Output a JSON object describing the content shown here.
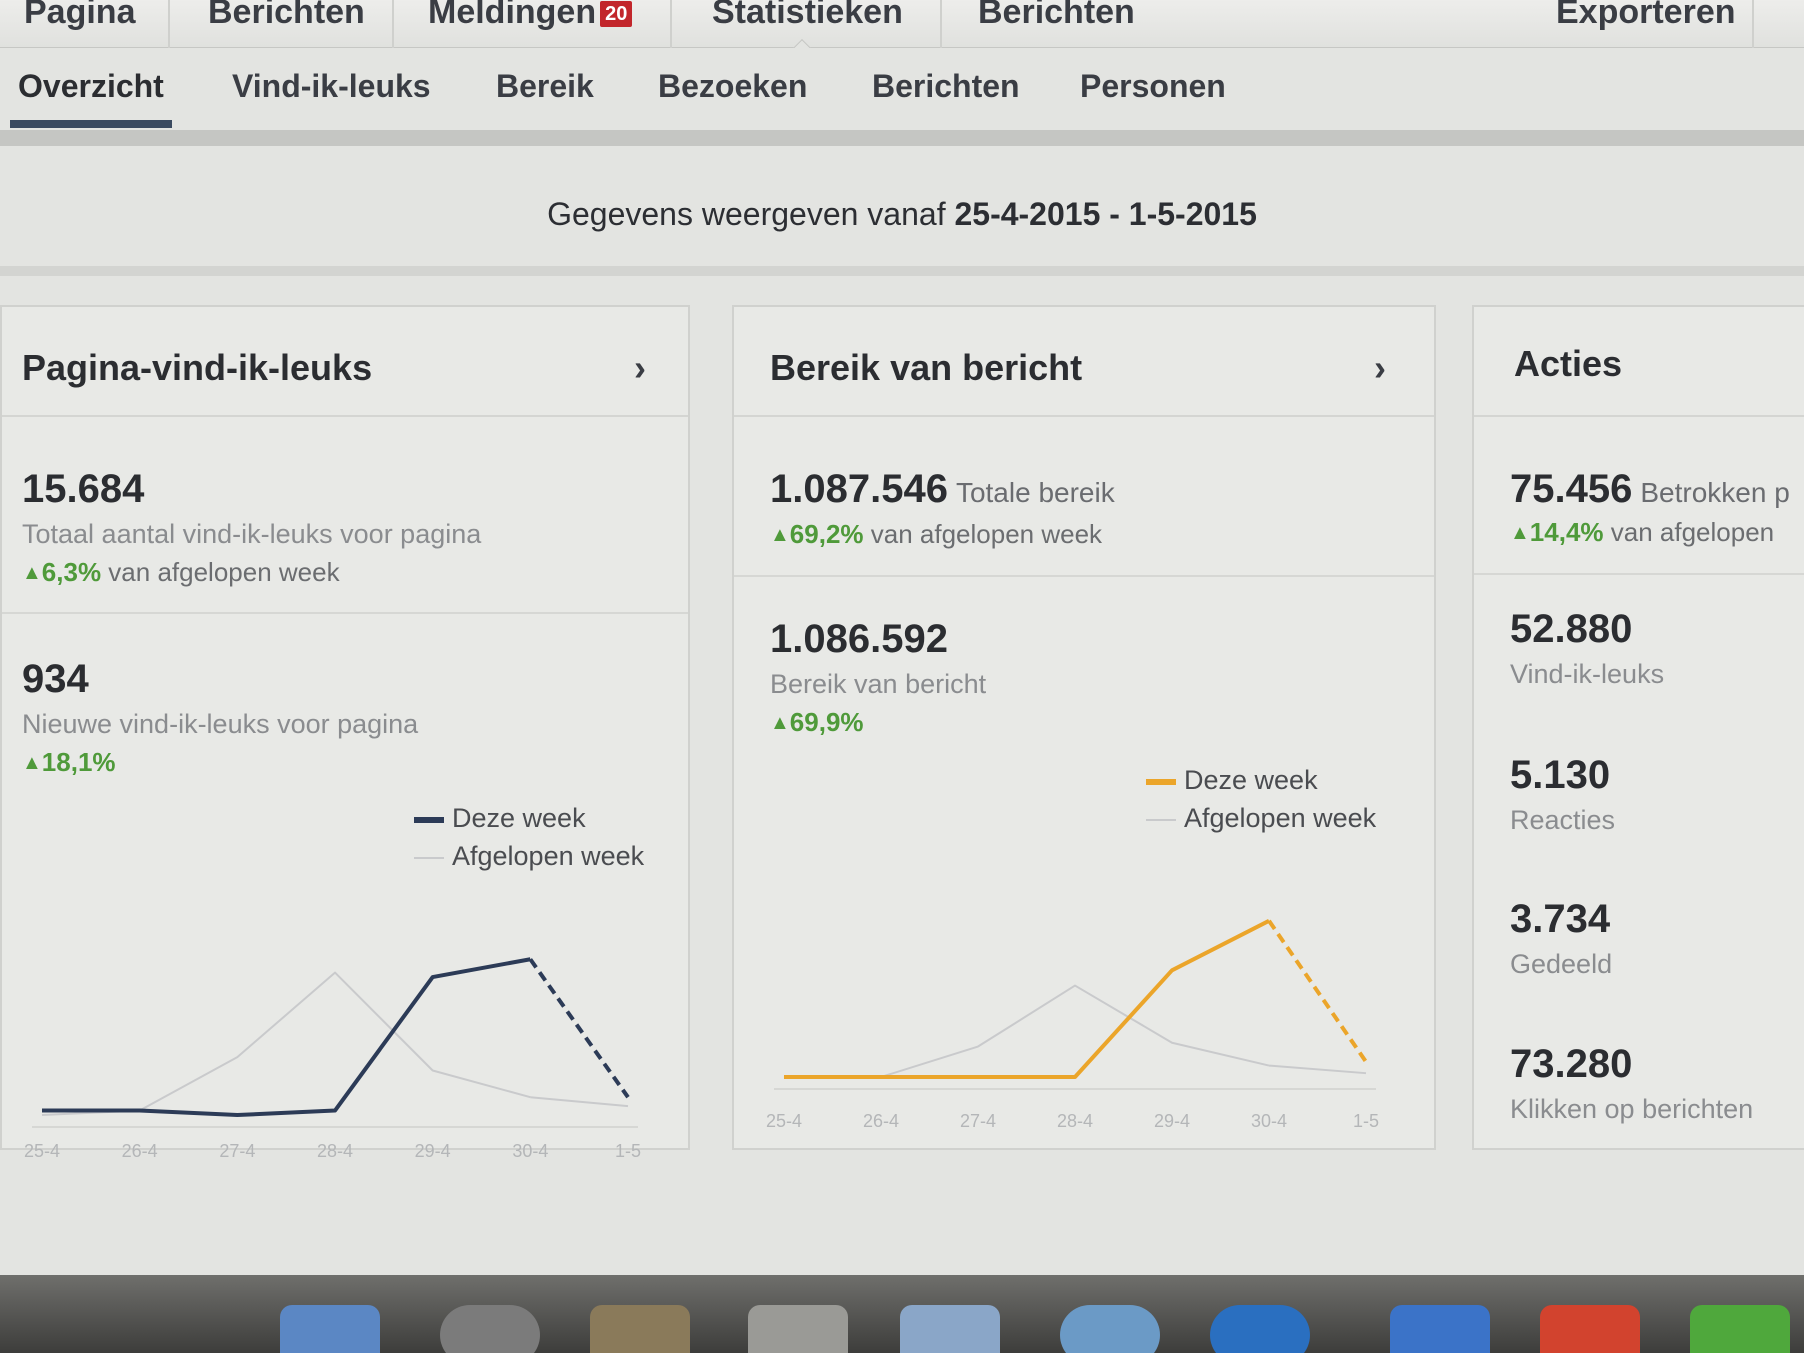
{
  "topnav": {
    "items": [
      "Pagina",
      "Berichten",
      "Meldingen",
      "Statistieken",
      "Berichten",
      "Exporteren"
    ],
    "notifications_badge": "20"
  },
  "subnav": {
    "tabs": [
      "Overzicht",
      "Vind-ik-leuks",
      "Bereik",
      "Bezoeken",
      "Berichten",
      "Personen"
    ],
    "active": "Overzicht"
  },
  "daterange": {
    "prefix": "Gegevens weergeven vanaf",
    "range": "25-4-2015 - 1-5-2015"
  },
  "cards": {
    "likes": {
      "title": "Pagina-vind-ik-leuks",
      "total_value": "15.684",
      "total_label": "Totaal aantal vind-ik-leuks voor pagina",
      "total_pct": "6,3%",
      "total_pct_suffix": "van afgelopen week",
      "new_value": "934",
      "new_label": "Nieuwe vind-ik-leuks voor pagina",
      "new_pct": "18,1%",
      "legend_this": "Deze week",
      "legend_last": "Afgelopen week"
    },
    "reach": {
      "title": "Bereik van bericht",
      "total_value": "1.087.546",
      "total_label": "Totale bereik",
      "total_pct": "69,2%",
      "total_pct_suffix": "van afgelopen week",
      "post_value": "1.086.592",
      "post_label": "Bereik van bericht",
      "post_pct": "69,9%",
      "legend_this": "Deze week",
      "legend_last": "Afgelopen week"
    },
    "actions": {
      "title": "Acties",
      "engaged_value": "75.456",
      "engaged_label": "Betrokken p",
      "engaged_pct": "14,4%",
      "engaged_pct_suffix": "van afgelopen",
      "likes_value": "52.880",
      "likes_label": "Vind-ik-leuks",
      "reactions_value": "5.130",
      "reactions_label": "Reacties",
      "shared_value": "3.734",
      "shared_label": "Gedeeld",
      "clicks_value": "73.280",
      "clicks_label": "Klikken op berichten"
    }
  },
  "colors": {
    "this_week_likes": "#2c3b57",
    "this_week_reach": "#eba52a",
    "last_week": "#c9cacc",
    "positive": "#4f9a3a"
  },
  "chart_data": [
    {
      "type": "line",
      "x": [
        "25-4",
        "26-4",
        "27-4",
        "28-4",
        "29-4",
        "30-4",
        "1-5"
      ],
      "series": [
        {
          "name": "Deze week",
          "values": [
            1,
            1,
            0,
            1,
            31,
            35,
            4
          ]
        },
        {
          "name": "Afgelopen week",
          "values": [
            0,
            1,
            13,
            32,
            10,
            4,
            2
          ]
        }
      ],
      "last_segment_dashed": true
    },
    {
      "type": "line",
      "x": [
        "25-4",
        "26-4",
        "27-4",
        "28-4",
        "29-4",
        "30-4",
        "1-5"
      ],
      "series": [
        {
          "name": "Deze week",
          "values": [
            0,
            0,
            0,
            0,
            28,
            41,
            4
          ]
        },
        {
          "name": "Afgelopen week",
          "values": [
            0,
            0,
            8,
            24,
            9,
            3,
            1
          ]
        }
      ],
      "last_segment_dashed": true
    }
  ]
}
